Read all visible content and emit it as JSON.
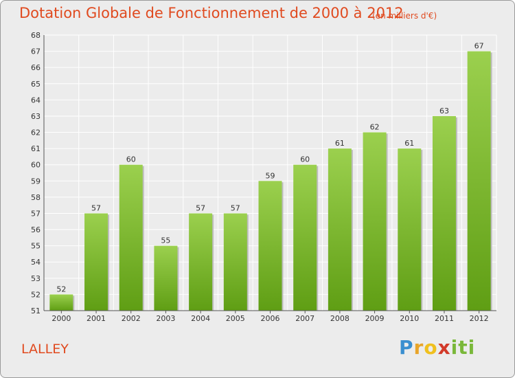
{
  "header": {
    "title": "Dotation Globale de Fonctionnement de 2000 à 2012",
    "unit": "(en milliers d'€)"
  },
  "footer": {
    "commune": "LALLEY",
    "logo_text": "Proxiti"
  },
  "colors": {
    "title": "#e04a1f",
    "bar_top": "#9bd04e",
    "bar_bottom": "#5f9e14",
    "background": "#ececec",
    "grid": "#ffffff",
    "logo_p": "#3a8fd0",
    "logo_r": "#e8a52a",
    "logo_o": "#f0c01e",
    "logo_x": "#d23a2a",
    "logo_i": "#7ab83a"
  },
  "chart_data": {
    "type": "bar",
    "title": "Dotation Globale de Fonctionnement de 2000 à 2012",
    "subtitle": "(en milliers d'€)",
    "xlabel": "",
    "ylabel": "",
    "categories": [
      "2000",
      "2001",
      "2002",
      "2003",
      "2004",
      "2005",
      "2006",
      "2007",
      "2008",
      "2009",
      "2010",
      "2011",
      "2012"
    ],
    "values": [
      52,
      57,
      60,
      55,
      57,
      57,
      59,
      60,
      61,
      62,
      61,
      63,
      67
    ],
    "ylim": [
      51,
      68
    ],
    "yticks": [
      51,
      52,
      53,
      54,
      55,
      56,
      57,
      58,
      59,
      60,
      61,
      62,
      63,
      64,
      65,
      66,
      67,
      68
    ],
    "grid": true,
    "data_labels": true
  }
}
